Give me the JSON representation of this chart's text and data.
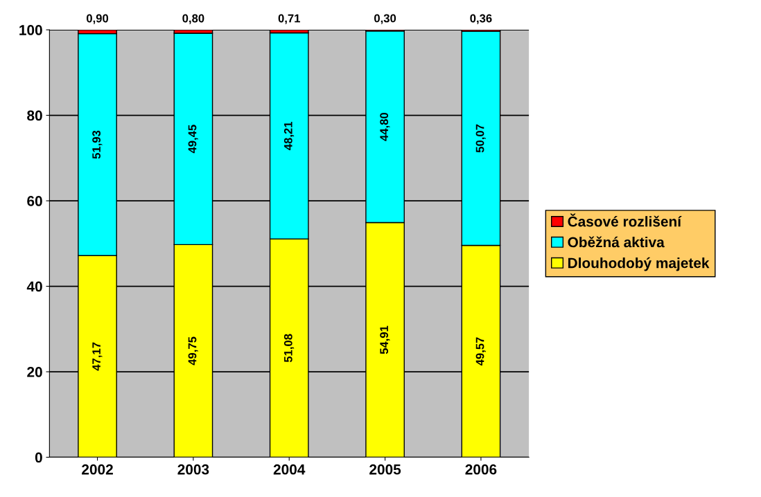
{
  "chart_data": {
    "type": "bar",
    "stacked": true,
    "categories": [
      "2002",
      "2003",
      "2004",
      "2005",
      "2006"
    ],
    "series": [
      {
        "name": "Dlouhodobý majetek",
        "color": "#ffff00",
        "values": [
          47.17,
          49.75,
          51.08,
          54.91,
          49.57
        ],
        "value_labels": [
          "47,17",
          "49,75",
          "51,08",
          "54,91",
          "49,57"
        ]
      },
      {
        "name": "Oběžná aktiva",
        "color": "#00ffff",
        "values": [
          51.93,
          49.45,
          48.21,
          44.8,
          50.07
        ],
        "value_labels": [
          "51,93",
          "49,45",
          "48,21",
          "44,80",
          "50,07"
        ]
      },
      {
        "name": "Časové rozlišení",
        "color": "#ff0000",
        "values": [
          0.9,
          0.8,
          0.71,
          0.3,
          0.36
        ],
        "value_labels": [
          "0,90",
          "0,80",
          "0,71",
          "0,30",
          "0,36"
        ]
      }
    ],
    "ylim": [
      0,
      100
    ],
    "yticks": [
      0,
      20,
      40,
      60,
      80,
      100
    ],
    "grid": "y",
    "legend": "right"
  }
}
